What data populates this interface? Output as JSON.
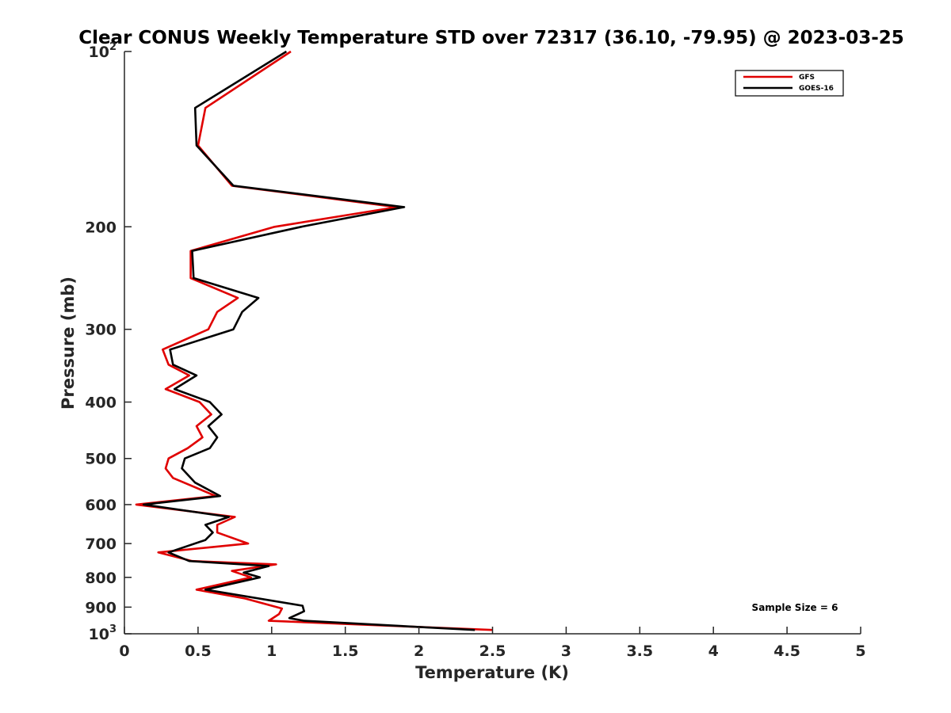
{
  "chart_data": {
    "type": "line",
    "title": "Clear CONUS Weekly Temperature STD over 72317 (36.10, -79.95) @ 2023-03-25",
    "xlabel": "Temperature (K)",
    "ylabel": "Pressure (mb)",
    "xlim": [
      0,
      5
    ],
    "ylim": [
      100,
      1000
    ],
    "y_scale": "log",
    "y_reversed": true,
    "grid": false,
    "legend_position": "top-right",
    "x_ticks": [
      {
        "value": 0,
        "label": "0"
      },
      {
        "value": 0.5,
        "label": "0.5"
      },
      {
        "value": 1,
        "label": "1"
      },
      {
        "value": 1.5,
        "label": "1.5"
      },
      {
        "value": 2,
        "label": "2"
      },
      {
        "value": 2.5,
        "label": "2.5"
      },
      {
        "value": 3,
        "label": "3"
      },
      {
        "value": 3.5,
        "label": "3.5"
      },
      {
        "value": 4,
        "label": "4"
      },
      {
        "value": 4.5,
        "label": "4.5"
      },
      {
        "value": 5,
        "label": "5"
      }
    ],
    "y_ticks": [
      {
        "value": 100,
        "base": "10",
        "exp": "2"
      },
      {
        "value": 200,
        "base": "200",
        "exp": ""
      },
      {
        "value": 300,
        "base": "300",
        "exp": ""
      },
      {
        "value": 400,
        "base": "400",
        "exp": ""
      },
      {
        "value": 500,
        "base": "500",
        "exp": ""
      },
      {
        "value": 600,
        "base": "600",
        "exp": ""
      },
      {
        "value": 700,
        "base": "700",
        "exp": ""
      },
      {
        "value": 800,
        "base": "800",
        "exp": ""
      },
      {
        "value": 900,
        "base": "900",
        "exp": ""
      },
      {
        "value": 1000,
        "base": "10",
        "exp": "3"
      }
    ],
    "annotation": "Sample Size = 6",
    "series": [
      {
        "name": "GFS",
        "color": "#e00000",
        "points": [
          [
            1.13,
            100
          ],
          [
            0.55,
            125
          ],
          [
            0.5,
            145
          ],
          [
            0.73,
            170
          ],
          [
            1.85,
            185
          ],
          [
            1.02,
            200
          ],
          [
            0.45,
            220
          ],
          [
            0.45,
            245
          ],
          [
            0.77,
            265
          ],
          [
            0.63,
            280
          ],
          [
            0.57,
            300
          ],
          [
            0.26,
            325
          ],
          [
            0.3,
            345
          ],
          [
            0.44,
            360
          ],
          [
            0.28,
            380
          ],
          [
            0.51,
            400
          ],
          [
            0.59,
            420
          ],
          [
            0.49,
            440
          ],
          [
            0.53,
            460
          ],
          [
            0.43,
            480
          ],
          [
            0.3,
            500
          ],
          [
            0.28,
            520
          ],
          [
            0.33,
            540
          ],
          [
            0.62,
            580
          ],
          [
            0.08,
            600
          ],
          [
            0.75,
            630
          ],
          [
            0.63,
            650
          ],
          [
            0.63,
            670
          ],
          [
            0.84,
            700
          ],
          [
            0.23,
            725
          ],
          [
            0.46,
            750
          ],
          [
            1.03,
            760
          ],
          [
            0.73,
            780
          ],
          [
            0.86,
            800
          ],
          [
            0.49,
            840
          ],
          [
            0.82,
            870
          ],
          [
            1.07,
            905
          ],
          [
            1.05,
            925
          ],
          [
            0.98,
            950
          ],
          [
            2.5,
            985
          ]
        ]
      },
      {
        "name": "GOES-16",
        "color": "#000000",
        "points": [
          [
            1.1,
            100
          ],
          [
            0.48,
            125
          ],
          [
            0.49,
            145
          ],
          [
            0.74,
            170
          ],
          [
            1.9,
            185
          ],
          [
            1.2,
            200
          ],
          [
            0.46,
            220
          ],
          [
            0.47,
            245
          ],
          [
            0.91,
            265
          ],
          [
            0.8,
            280
          ],
          [
            0.74,
            300
          ],
          [
            0.31,
            325
          ],
          [
            0.33,
            345
          ],
          [
            0.49,
            360
          ],
          [
            0.34,
            380
          ],
          [
            0.58,
            400
          ],
          [
            0.66,
            420
          ],
          [
            0.57,
            440
          ],
          [
            0.63,
            460
          ],
          [
            0.58,
            480
          ],
          [
            0.41,
            500
          ],
          [
            0.39,
            520
          ],
          [
            0.48,
            550
          ],
          [
            0.65,
            580
          ],
          [
            0.13,
            600
          ],
          [
            0.71,
            630
          ],
          [
            0.55,
            650
          ],
          [
            0.6,
            670
          ],
          [
            0.55,
            690
          ],
          [
            0.3,
            725
          ],
          [
            0.44,
            750
          ],
          [
            0.98,
            765
          ],
          [
            0.81,
            785
          ],
          [
            0.92,
            800
          ],
          [
            0.55,
            840
          ],
          [
            1.21,
            895
          ],
          [
            1.22,
            915
          ],
          [
            1.12,
            940
          ],
          [
            1.22,
            950
          ],
          [
            2.38,
            985
          ]
        ]
      }
    ]
  }
}
